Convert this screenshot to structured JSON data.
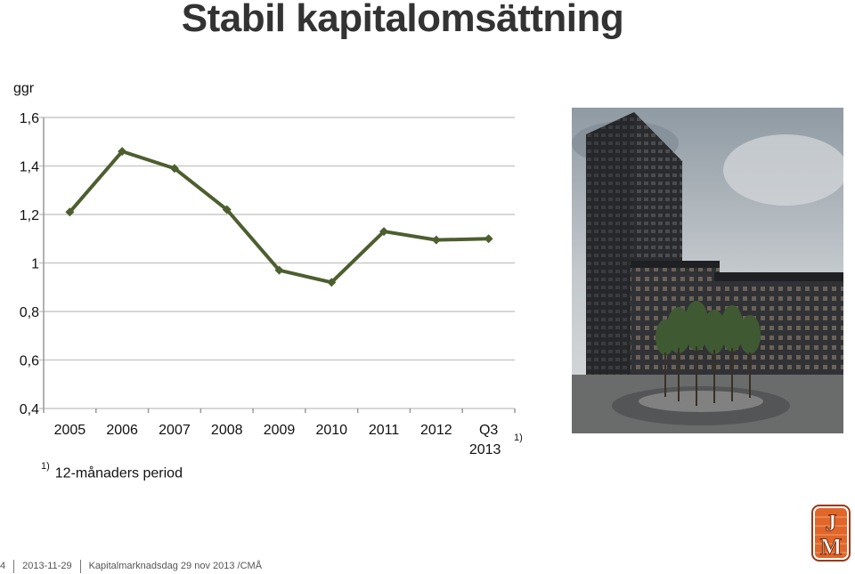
{
  "header": {
    "title": "Stabil kapitalomsättning"
  },
  "chart_data": {
    "type": "line",
    "ylabel": "ggr",
    "ylim": [
      0.4,
      1.6
    ],
    "yticks": [
      "1,6",
      "1,4",
      "1,2",
      "1",
      "0,8",
      "0,6",
      "0,4"
    ],
    "ytick_values": [
      1.6,
      1.4,
      1.2,
      1.0,
      0.8,
      0.6,
      0.4
    ],
    "categories": [
      "2005",
      "2006",
      "2007",
      "2008",
      "2009",
      "2010",
      "2011",
      "2012",
      "Q3 2013"
    ],
    "category_lines": [
      [
        "2005"
      ],
      [
        "2006"
      ],
      [
        "2007"
      ],
      [
        "2008"
      ],
      [
        "2009"
      ],
      [
        "2010"
      ],
      [
        "2011"
      ],
      [
        "2012"
      ],
      [
        "Q3",
        "2013"
      ]
    ],
    "values": [
      1.21,
      1.46,
      1.39,
      1.22,
      0.97,
      0.92,
      1.13,
      1.095,
      1.1
    ],
    "superscript": "1)",
    "series_color": "#4d5e2f",
    "grid": true
  },
  "footnote": {
    "marker": "1)",
    "text": "12-månaders period"
  },
  "footer": {
    "page": "4",
    "date": "2013-11-29",
    "event": "Kapitalmarknadsdag 29 nov 2013 /CMÅ"
  },
  "logo": {
    "letters": [
      "J",
      "M"
    ],
    "color": "#e0662a"
  }
}
